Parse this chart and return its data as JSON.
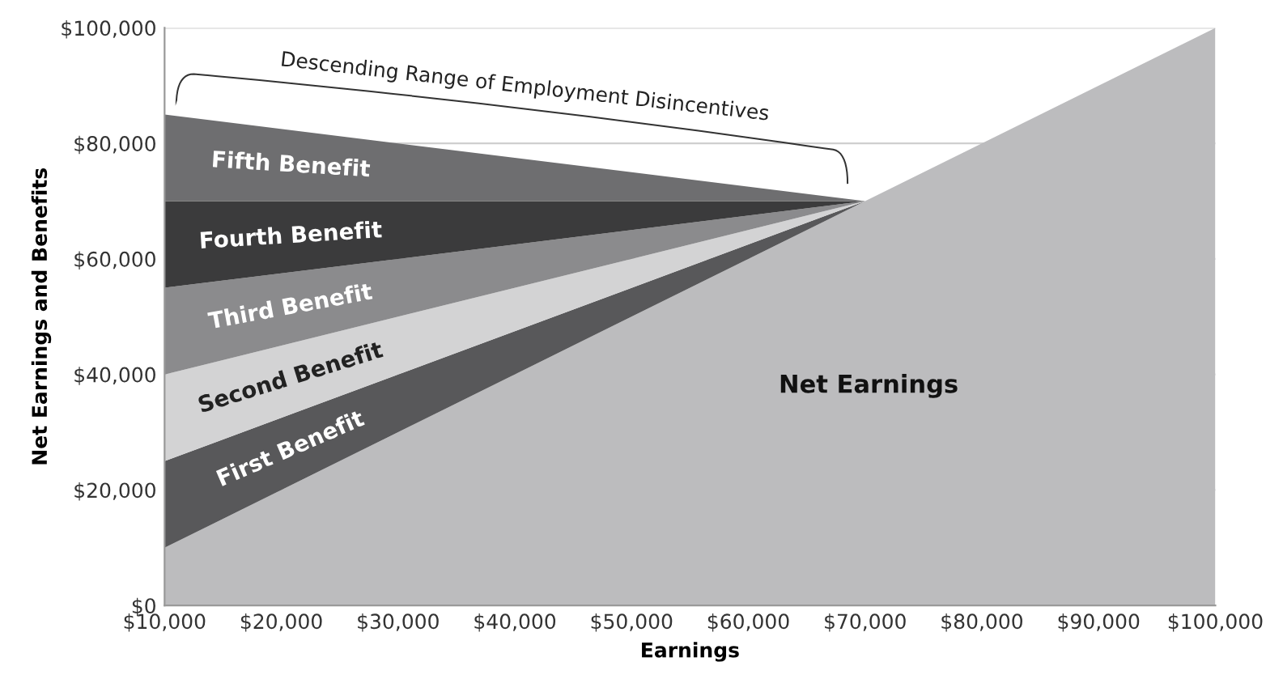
{
  "chart_data": {
    "type": "area",
    "stacked": true,
    "xlabel": "Earnings",
    "ylabel": "Net Earnings and Benefits",
    "x": [
      10000,
      70000,
      100000
    ],
    "series": [
      {
        "name": "Net Earnings",
        "color": "#bcbcbe",
        "values": [
          10000,
          70000,
          100000
        ]
      },
      {
        "name": "First Benefit",
        "color": "#58585a",
        "values": [
          15000,
          0,
          0
        ]
      },
      {
        "name": "Second Benefit",
        "color": "#d3d3d4",
        "values": [
          15000,
          0,
          0
        ]
      },
      {
        "name": "Third Benefit",
        "color": "#8b8b8d",
        "values": [
          15000,
          0,
          0
        ]
      },
      {
        "name": "Fourth Benefit",
        "color": "#3b3b3c",
        "values": [
          15000,
          0,
          0
        ]
      },
      {
        "name": "Fifth Benefit",
        "color": "#6e6e70",
        "values": [
          15000,
          0,
          0
        ]
      }
    ],
    "xlim": [
      10000,
      100000
    ],
    "ylim": [
      0,
      100000
    ],
    "xticks": [
      {
        "value": 10000,
        "label": "$10,000"
      },
      {
        "value": 20000,
        "label": "$20,000"
      },
      {
        "value": 30000,
        "label": "$30,000"
      },
      {
        "value": 40000,
        "label": "$40,000"
      },
      {
        "value": 50000,
        "label": "$50,000"
      },
      {
        "value": 60000,
        "label": "$60,000"
      },
      {
        "value": 70000,
        "label": "$70,000"
      },
      {
        "value": 80000,
        "label": "$80,000"
      },
      {
        "value": 90000,
        "label": "$90,000"
      },
      {
        "value": 100000,
        "label": "$100,000"
      }
    ],
    "yticks": [
      {
        "value": 0,
        "label": "$0"
      },
      {
        "value": 20000,
        "label": "$20,000"
      },
      {
        "value": 40000,
        "label": "$40,000"
      },
      {
        "value": 60000,
        "label": "$60,000"
      },
      {
        "value": 80000,
        "label": "$80,000"
      },
      {
        "value": 100000,
        "label": "$100,000"
      }
    ],
    "grid": "y",
    "annotations": [
      "Descending Range of Employment Disincentives"
    ]
  }
}
